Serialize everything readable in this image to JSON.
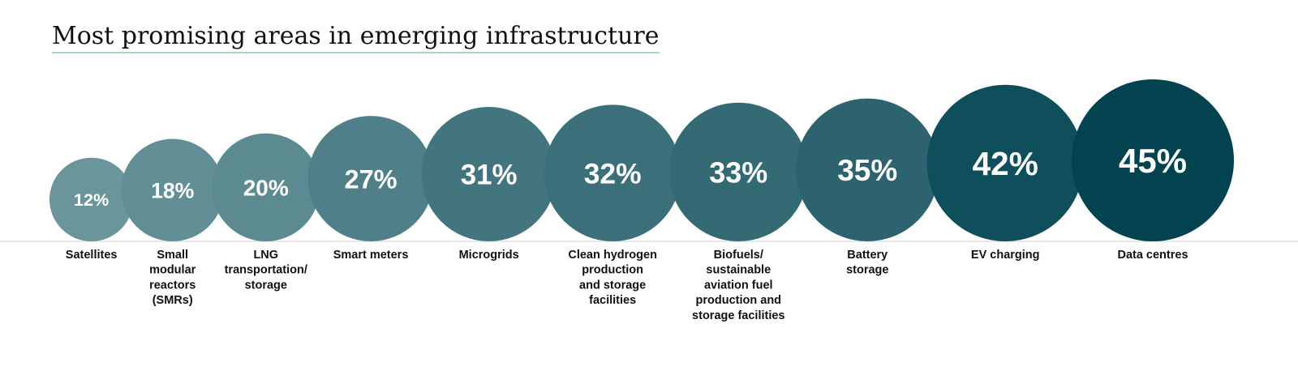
{
  "chart_data": {
    "type": "bubble",
    "title": "Most promising areas in emerging infrastructure",
    "xlabel": "",
    "ylabel": "",
    "grid": false,
    "legend": "none",
    "categories": [
      "Satellites",
      "Small modular reactors (SMRs)",
      "LNG transportation/ storage",
      "Smart meters",
      "Microgrids",
      "Clean hydrogen production and storage facilities",
      "Biofuels/ sustainable aviation fuel production and storage facilities",
      "Battery storage",
      "EV charging",
      "Data centres"
    ],
    "labels": [
      [
        "Satellites"
      ],
      [
        "Small",
        "modular",
        "reactors",
        "(SMRs)"
      ],
      [
        "LNG",
        "transportation/",
        "storage"
      ],
      [
        "Smart meters"
      ],
      [
        "Microgrids"
      ],
      [
        "Clean hydrogen",
        "production",
        "and storage",
        "facilities"
      ],
      [
        "Biofuels/",
        "sustainable",
        "aviation fuel",
        "production and",
        "storage facilities"
      ],
      [
        "Battery",
        "storage"
      ],
      [
        "EV charging"
      ],
      [
        "Data centres"
      ]
    ],
    "values": [
      12,
      18,
      20,
      27,
      31,
      32,
      33,
      35,
      42,
      45
    ],
    "value_labels": [
      "12%",
      "18%",
      "20%",
      "27%",
      "31%",
      "32%",
      "33%",
      "35%",
      "42%",
      "45%"
    ],
    "colors": [
      "#6a959b",
      "#628f96",
      "#5c8a91",
      "#4f7f88",
      "#43757e",
      "#3b6f79",
      "#346a74",
      "#2c636e",
      "#0f4e5b",
      "#03434f"
    ]
  }
}
